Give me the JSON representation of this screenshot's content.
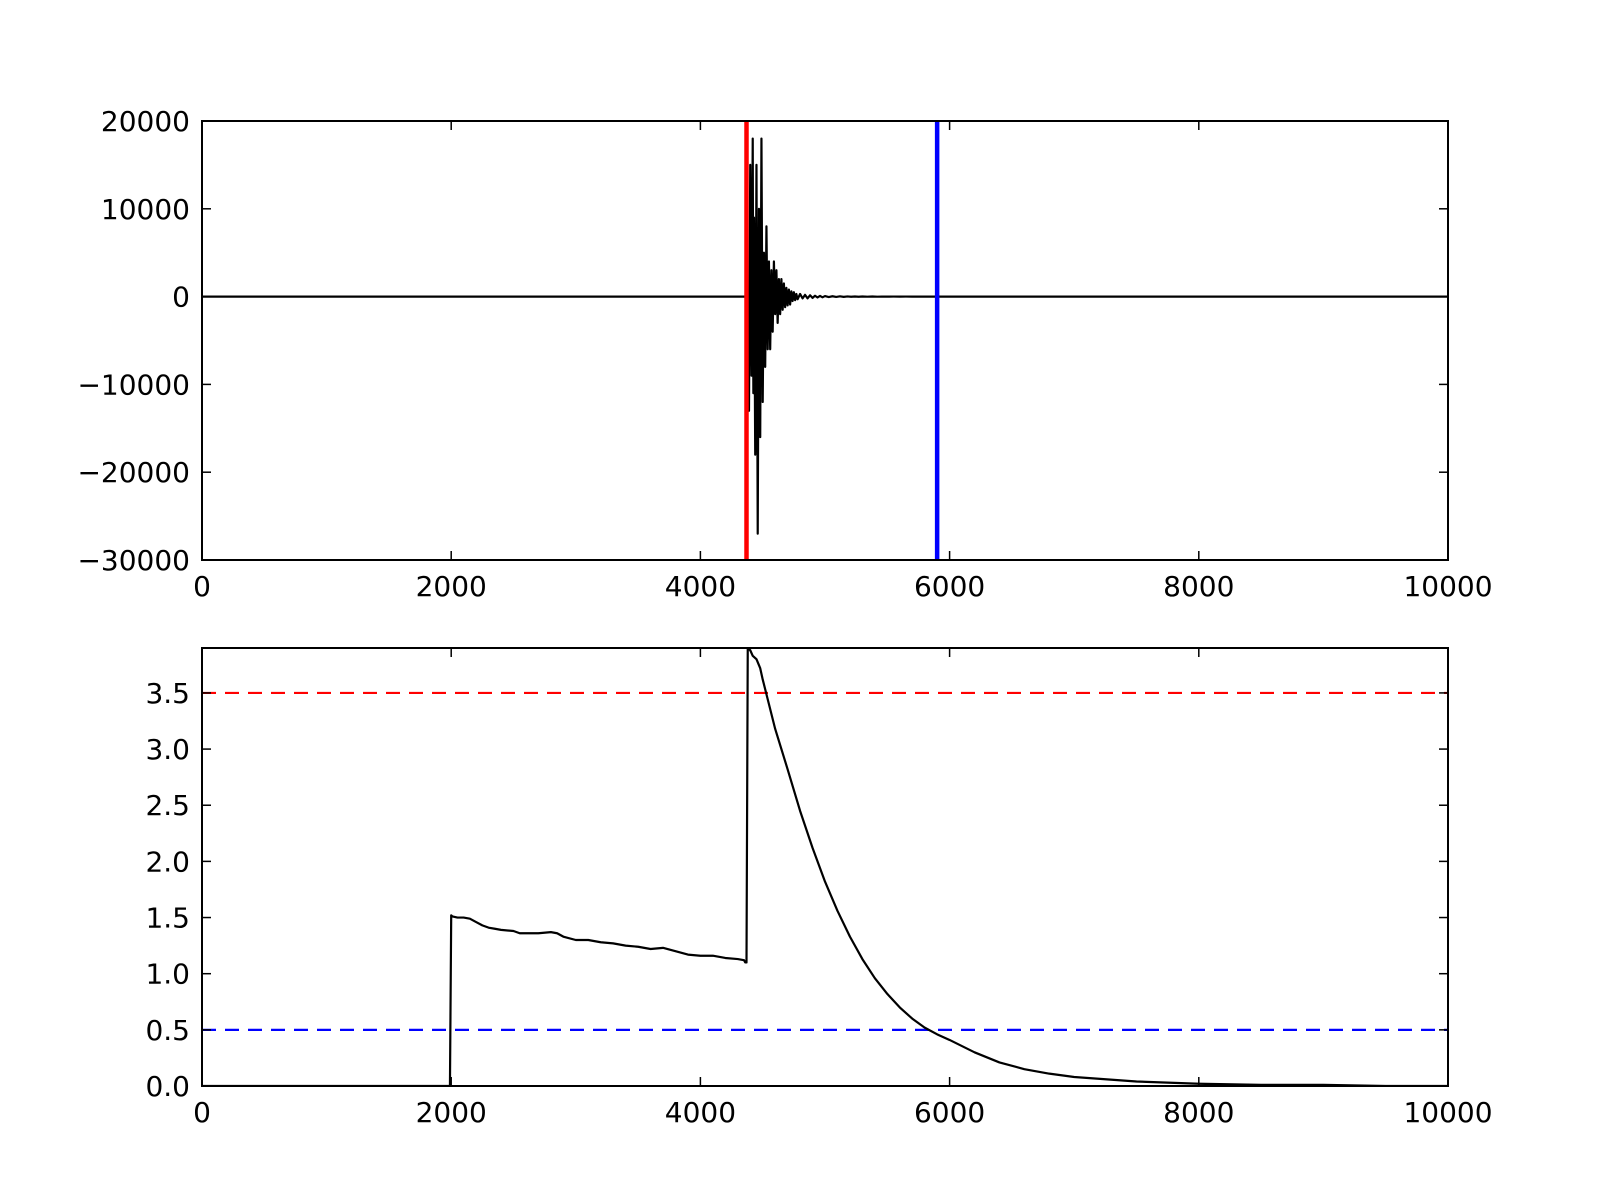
{
  "chart_data": [
    {
      "type": "line",
      "xlim": [
        0,
        10000
      ],
      "ylim": [
        -30000,
        20000
      ],
      "x_ticks": [
        0,
        2000,
        4000,
        6000,
        8000,
        10000
      ],
      "x_tick_labels": [
        "0",
        "2000",
        "4000",
        "6000",
        "8000",
        "10000"
      ],
      "y_ticks": [
        -30000,
        -20000,
        -10000,
        0,
        10000,
        20000
      ],
      "y_tick_labels": [
        "−30000",
        "−20000",
        "−10000",
        "0",
        "10000",
        "20000"
      ],
      "grid": false,
      "series": [
        {
          "color": "#000000",
          "x": [
            0,
            1000,
            2000,
            3000,
            4000,
            4370,
            4380,
            4390,
            4400,
            4410,
            4420,
            4425,
            4430,
            4440,
            4450,
            4460,
            4470,
            4480,
            4490,
            4500,
            4510,
            4520,
            4530,
            4540,
            4550,
            4560,
            4570,
            4580,
            4590,
            4600,
            4610,
            4620,
            4630,
            4640,
            4650,
            4660,
            4670,
            4680,
            4690,
            4700,
            4710,
            4720,
            4730,
            4740,
            4750,
            4760,
            4770,
            4780,
            4800,
            4820,
            4840,
            4860,
            4880,
            4900,
            4920,
            4940,
            4960,
            4980,
            5000,
            5030,
            5060,
            5090,
            5120,
            5150,
            5180,
            5210,
            5240,
            5270,
            5300,
            5340,
            5380,
            5420,
            5460,
            5500,
            5550,
            5600,
            5650,
            5700,
            5800,
            5900,
            6000,
            6500,
            7000,
            8000,
            9000,
            10000
          ],
          "y": [
            0,
            0,
            0,
            0,
            0,
            0,
            0,
            -13000,
            15000,
            -9000,
            18000,
            -11000,
            9000,
            -18000,
            15000,
            -27000,
            10000,
            -16000,
            18000,
            -12000,
            5000,
            -8000,
            8000,
            -6000,
            4000,
            -6000,
            3000,
            -4000,
            4000,
            -2000,
            3000,
            -3000,
            2000,
            -2000,
            2000,
            -1500,
            1500,
            -1200,
            1000,
            -1000,
            800,
            -900,
            600,
            -500,
            500,
            -400,
            300,
            -300,
            300,
            -200,
            200,
            -200,
            150,
            -150,
            100,
            -100,
            80,
            -80,
            60,
            -50,
            40,
            -40,
            30,
            -30,
            20,
            -20,
            15,
            -15,
            10,
            -10,
            8,
            -8,
            5,
            -5,
            3,
            -3,
            2,
            -2,
            0,
            0,
            0,
            0,
            0,
            0,
            0,
            0
          ]
        }
      ],
      "vlines": [
        {
          "x": 4370,
          "color": "#ff0000",
          "style": "solid"
        },
        {
          "x": 5900,
          "color": "#0000ff",
          "style": "solid"
        }
      ]
    },
    {
      "type": "line",
      "xlim": [
        0,
        10000
      ],
      "ylim": [
        0,
        3.9
      ],
      "x_ticks": [
        0,
        2000,
        4000,
        6000,
        8000,
        10000
      ],
      "x_tick_labels": [
        "0",
        "2000",
        "4000",
        "6000",
        "8000",
        "10000"
      ],
      "y_ticks": [
        0.0,
        0.5,
        1.0,
        1.5,
        2.0,
        2.5,
        3.0,
        3.5
      ],
      "y_tick_labels": [
        "0.0",
        "0.5",
        "1.0",
        "1.5",
        "2.0",
        "2.5",
        "3.0",
        "3.5"
      ],
      "grid": false,
      "series": [
        {
          "color": "#000000",
          "x": [
            0,
            1990,
            2000,
            2010,
            2050,
            2100,
            2150,
            2200,
            2250,
            2300,
            2350,
            2400,
            2500,
            2550,
            2600,
            2700,
            2800,
            2850,
            2900,
            3000,
            3100,
            3200,
            3300,
            3400,
            3500,
            3600,
            3700,
            3800,
            3900,
            4000,
            4100,
            4200,
            4300,
            4350,
            4360,
            4370,
            4380,
            4400,
            4420,
            4450,
            4480,
            4500,
            4550,
            4600,
            4700,
            4800,
            4900,
            5000,
            5100,
            5200,
            5300,
            5400,
            5500,
            5600,
            5700,
            5800,
            5900,
            6000,
            6200,
            6400,
            6600,
            6800,
            7000,
            7500,
            8000,
            8500,
            9000,
            9500,
            10000
          ],
          "y": [
            0,
            0,
            1.52,
            1.51,
            1.5,
            1.5,
            1.49,
            1.46,
            1.43,
            1.41,
            1.4,
            1.39,
            1.38,
            1.36,
            1.36,
            1.36,
            1.37,
            1.36,
            1.33,
            1.3,
            1.3,
            1.28,
            1.27,
            1.25,
            1.24,
            1.22,
            1.23,
            1.2,
            1.17,
            1.16,
            1.16,
            1.14,
            1.13,
            1.12,
            1.1,
            1.1,
            3.9,
            3.88,
            3.83,
            3.8,
            3.72,
            3.62,
            3.4,
            3.18,
            2.82,
            2.45,
            2.12,
            1.82,
            1.56,
            1.33,
            1.13,
            0.96,
            0.82,
            0.7,
            0.6,
            0.52,
            0.46,
            0.41,
            0.3,
            0.21,
            0.15,
            0.11,
            0.08,
            0.04,
            0.02,
            0.01,
            0.01,
            0.0,
            0.0
          ]
        }
      ],
      "hlines": [
        {
          "y": 3.5,
          "color": "#ff0000",
          "style": "dashed"
        },
        {
          "y": 0.5,
          "color": "#0000ff",
          "style": "dashed"
        }
      ]
    }
  ]
}
